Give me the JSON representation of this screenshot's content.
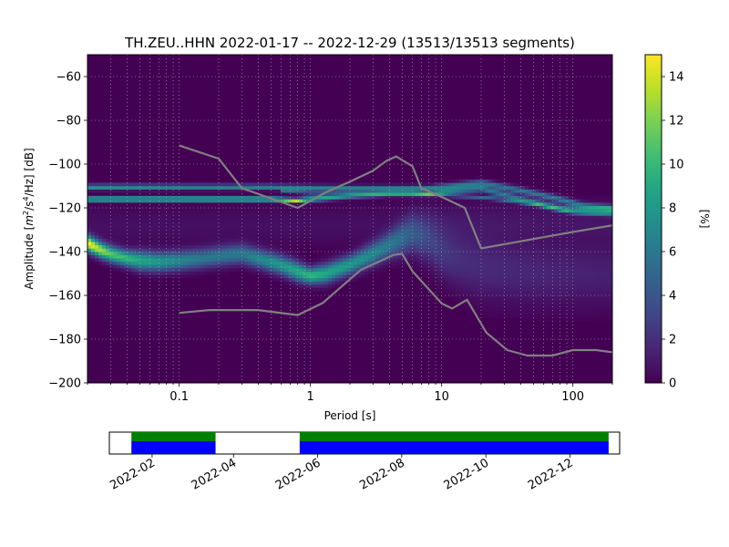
{
  "chart_data": [
    {
      "type": "heatmap",
      "title": "TH.ZEU..HHN   2022-01-17 -- 2022-12-29  (13513/13513 segments)",
      "xlabel": "Period [s]",
      "ylabel_parts": {
        "lead": "Amplitude [",
        "m": "m",
        "sq": "2",
        "mid": "/s",
        "four": "4",
        "tail": "/Hz] [dB]"
      },
      "x_scale": "log",
      "xlim": [
        0.02,
        200
      ],
      "ylim": [
        -200,
        -50
      ],
      "x_ticks": [
        {
          "value": 0.1,
          "label": "0.1"
        },
        {
          "value": 1,
          "label": "1"
        },
        {
          "value": 10,
          "label": "10"
        },
        {
          "value": 100,
          "label": "100"
        }
      ],
      "y_ticks": [
        {
          "value": -60,
          "label": "−60"
        },
        {
          "value": -80,
          "label": "−80"
        },
        {
          "value": -100,
          "label": "−100"
        },
        {
          "value": -120,
          "label": "−120"
        },
        {
          "value": -140,
          "label": "−140"
        },
        {
          "value": -160,
          "label": "−160"
        },
        {
          "value": -180,
          "label": "−180"
        },
        {
          "value": -200,
          "label": "−200"
        }
      ],
      "grid": true,
      "background_color": "#440154",
      "noise_model_color": "#808080",
      "colorbar": {
        "label": "[%]",
        "range": [
          0,
          15
        ],
        "ticks": [
          {
            "value": 0,
            "label": "0"
          },
          {
            "value": 2,
            "label": "2"
          },
          {
            "value": 4,
            "label": "4"
          },
          {
            "value": 6,
            "label": "6"
          },
          {
            "value": 8,
            "label": "8"
          },
          {
            "value": 10,
            "label": "10"
          },
          {
            "value": 12,
            "label": "12"
          },
          {
            "value": 14,
            "label": "14"
          }
        ],
        "colormap": "viridis"
      },
      "density_bands": [
        {
          "points": [
            [
              0.02,
              -136
            ],
            [
              0.025,
              -139
            ],
            [
              0.03,
              -141
            ],
            [
              0.04,
              -143
            ],
            [
              0.05,
              -144
            ],
            [
              0.07,
              -144.5
            ],
            [
              0.1,
              -144
            ],
            [
              0.15,
              -143
            ],
            [
              0.2,
              -142
            ],
            [
              0.3,
              -141
            ],
            [
              0.4,
              -143
            ],
            [
              0.6,
              -146
            ],
            [
              0.8,
              -149
            ],
            [
              1,
              -151
            ],
            [
              1.3,
              -150
            ],
            [
              2,
              -146
            ],
            [
              3,
              -141
            ],
            [
              4,
              -137
            ],
            [
              5,
              -134
            ],
            [
              6,
              -132
            ],
            [
              8,
              -135
            ],
            [
              10,
              -140
            ],
            [
              14,
              -144
            ],
            [
              20,
              -147
            ],
            [
              40,
              -149
            ],
            [
              70,
              -150
            ],
            [
              120,
              -150
            ],
            [
              200,
              -150
            ]
          ],
          "width": [
            2.5,
            2.5,
            2.5,
            2.5,
            3,
            3,
            3,
            3,
            3,
            3,
            3,
            3,
            3,
            2.5,
            3,
            3,
            3.5,
            4,
            5,
            6,
            7,
            8,
            9,
            10,
            10,
            10,
            10,
            10
          ],
          "peak": [
            15,
            13,
            11,
            10,
            9,
            8,
            7,
            6,
            6,
            6,
            7,
            8,
            9,
            10,
            9,
            8,
            7,
            6,
            5,
            4,
            3,
            2.5,
            2,
            1.8,
            1.6,
            1.5,
            1.4,
            1.3
          ]
        },
        {
          "points": [
            [
              0.02,
              -110.5
            ],
            [
              0.1,
              -110.5
            ],
            [
              0.5,
              -110.5
            ],
            [
              1,
              -110.8
            ],
            [
              2,
              -111
            ],
            [
              4,
              -111
            ],
            [
              8,
              -111
            ],
            [
              12,
              -110
            ],
            [
              20,
              -108.5
            ],
            [
              40,
              -112
            ],
            [
              80,
              -116
            ],
            [
              120,
              -119
            ],
            [
              200,
              -120
            ]
          ],
          "width": [
            0.8,
            0.8,
            0.8,
            0.8,
            0.8,
            0.8,
            0.8,
            1,
            1,
            1,
            1,
            1,
            1
          ],
          "peak": [
            8,
            7,
            7,
            7,
            7,
            7,
            7,
            6,
            6,
            6,
            6,
            6,
            6
          ]
        },
        {
          "points": [
            [
              0.02,
              -116
            ],
            [
              0.1,
              -116
            ],
            [
              0.5,
              -116
            ],
            [
              0.8,
              -116.5
            ],
            [
              1,
              -116
            ],
            [
              2,
              -114.5
            ],
            [
              4,
              -113.5
            ],
            [
              8,
              -113.5
            ],
            [
              12,
              -112
            ],
            [
              20,
              -111
            ],
            [
              40,
              -116
            ],
            [
              80,
              -120
            ],
            [
              120,
              -121
            ],
            [
              200,
              -121
            ]
          ],
          "width": [
            0.6,
            0.6,
            0.6,
            0.6,
            0.8,
            0.8,
            0.8,
            0.8,
            1,
            1,
            1,
            1,
            1,
            1
          ],
          "peak": [
            14,
            14,
            14,
            15,
            10,
            8,
            7,
            7,
            6,
            6,
            6,
            6,
            6,
            6
          ]
        },
        {
          "points": [
            [
              0.6,
              -112
            ],
            [
              1,
              -113
            ],
            [
              2,
              -113
            ],
            [
              4,
              -113
            ],
            [
              6,
              -113
            ],
            [
              10,
              -114
            ],
            [
              20,
              -115
            ],
            [
              50,
              -118
            ],
            [
              100,
              -122
            ],
            [
              200,
              -123
            ]
          ],
          "width": [
            0.6,
            0.6,
            0.6,
            0.6,
            0.6,
            0.6,
            0.6,
            0.6,
            0.6,
            0.6
          ],
          "peak": [
            5,
            5,
            5,
            5,
            5,
            5,
            5,
            5,
            5,
            5
          ]
        },
        {
          "points": [
            [
              0.02,
              -128
            ],
            [
              0.1,
              -128
            ],
            [
              0.5,
              -128
            ],
            [
              1,
              -128
            ],
            [
              2,
              -128
            ],
            [
              4,
              -127
            ],
            [
              8,
              -126.5
            ],
            [
              15,
              -126
            ],
            [
              40,
              -126
            ],
            [
              100,
              -126
            ],
            [
              200,
              -126
            ]
          ],
          "width": [
            6,
            6,
            6,
            6,
            6,
            6,
            6,
            6,
            6,
            6,
            6
          ],
          "peak": [
            0.6,
            0.6,
            0.6,
            0.6,
            0.6,
            0.6,
            0.8,
            0.8,
            0.8,
            0.8,
            0.8
          ]
        }
      ],
      "noise_models": [
        {
          "points": [
            [
              0.1,
              -91.5
            ],
            [
              0.2,
              -97.5
            ],
            [
              0.3,
              -111
            ],
            [
              0.8,
              -120
            ],
            [
              1.3,
              -113
            ],
            [
              2,
              -108
            ],
            [
              3,
              -103
            ],
            [
              3.8,
              -98.5
            ],
            [
              4.5,
              -96.5
            ],
            [
              6,
              -101
            ],
            [
              7,
              -111
            ],
            [
              10,
              -115
            ],
            [
              15,
              -120
            ],
            [
              20,
              -138.5
            ],
            [
              100,
              -131
            ],
            [
              200,
              -128
            ]
          ]
        },
        {
          "points": [
            [
              0.1,
              -168
            ],
            [
              0.17,
              -166.7
            ],
            [
              0.4,
              -166.7
            ],
            [
              0.8,
              -169
            ],
            [
              1.24,
              -163.5
            ],
            [
              2.4,
              -148.5
            ],
            [
              4.3,
              -141.5
            ],
            [
              5,
              -141
            ],
            [
              6,
              -149
            ],
            [
              10,
              -163.7
            ],
            [
              12,
              -166
            ],
            [
              15.6,
              -162
            ],
            [
              21.9,
              -177
            ],
            [
              31.6,
              -185
            ],
            [
              45,
              -187.5
            ],
            [
              70,
              -187.5
            ],
            [
              100,
              -185
            ],
            [
              150,
              -185
            ],
            [
              200,
              -186
            ]
          ]
        }
      ]
    },
    {
      "type": "timeline",
      "x_range": [
        "2022-01-01",
        "2023-01-06"
      ],
      "x_ticks": [
        {
          "value": "2022-02-01",
          "label": "2022-02"
        },
        {
          "value": "2022-04-01",
          "label": "2022-04"
        },
        {
          "value": "2022-06-01",
          "label": "2022-06"
        },
        {
          "value": "2022-08-01",
          "label": "2022-08"
        },
        {
          "value": "2022-10-01",
          "label": "2022-10"
        },
        {
          "value": "2022-12-01",
          "label": "2022-12"
        }
      ],
      "segments": [
        {
          "start": "2022-01-17",
          "end": "2022-03-19"
        },
        {
          "start": "2022-05-19",
          "end": "2022-12-29"
        }
      ],
      "top_color": "#008000",
      "bottom_color": "#0000ff"
    }
  ]
}
